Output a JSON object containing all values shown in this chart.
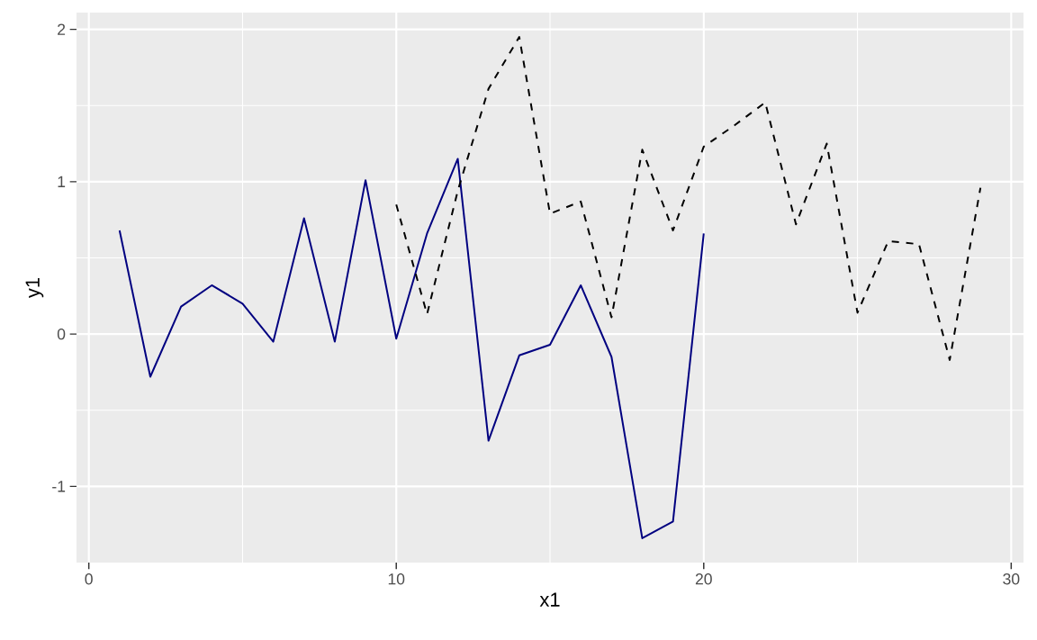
{
  "chart_data": {
    "type": "line",
    "xlabel": "x1",
    "ylabel": "y1",
    "xlim": [
      -0.4,
      30.4
    ],
    "ylim": [
      -1.5,
      2.11
    ],
    "xticks": [
      0,
      10,
      20,
      30
    ],
    "yticks": [
      -1,
      0,
      1,
      2
    ],
    "grid": true,
    "series": [
      {
        "color": "#000080",
        "line_style": "solid",
        "x": [
          1,
          2,
          3,
          4,
          5,
          6,
          7,
          8,
          9,
          10,
          11,
          12,
          13,
          14,
          15,
          16,
          17,
          18,
          19,
          20
        ],
        "values": [
          0.68,
          -0.28,
          0.18,
          0.32,
          0.2,
          -0.05,
          0.76,
          -0.05,
          1.01,
          -0.03,
          0.66,
          1.15,
          -0.7,
          -0.14,
          -0.07,
          0.32,
          -0.15,
          -1.34,
          -1.23,
          0.66
        ]
      },
      {
        "color": "#000000",
        "line_style": "dashed",
        "x": [
          10,
          11,
          12,
          13,
          14,
          15,
          16,
          17,
          18,
          19,
          20,
          21,
          22,
          23,
          24,
          25,
          26,
          27,
          28,
          29
        ],
        "values": [
          0.85,
          0.13,
          0.94,
          1.61,
          1.95,
          0.79,
          0.87,
          0.11,
          1.21,
          0.68,
          1.23,
          1.37,
          1.52,
          0.72,
          1.25,
          0.14,
          0.61,
          0.59,
          -0.17,
          0.96
        ]
      }
    ]
  }
}
